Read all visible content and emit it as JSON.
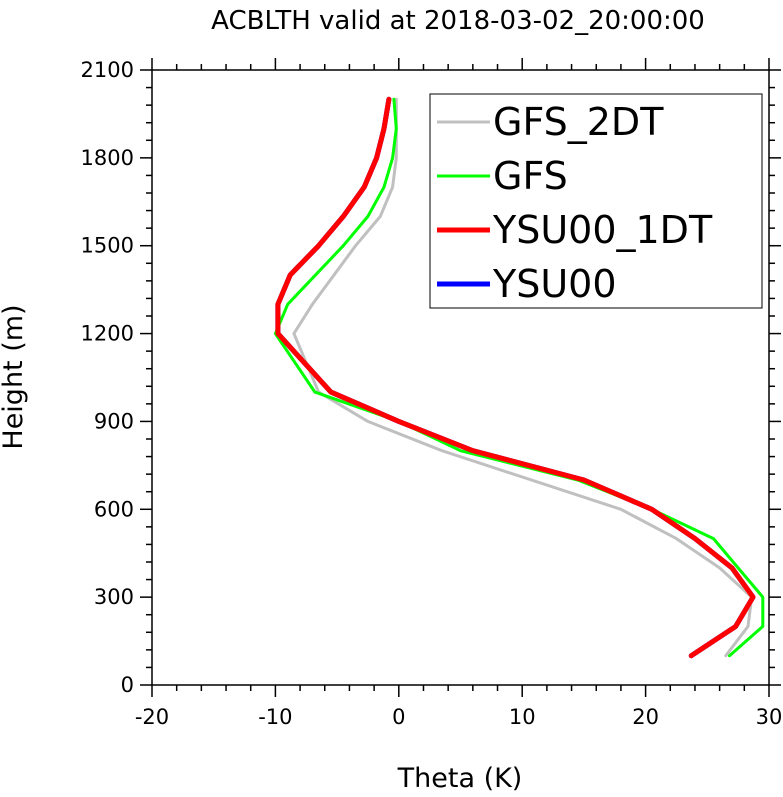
{
  "chart_data": {
    "type": "line",
    "title": "ACBLTH valid at 2018-03-02_20:00:00",
    "xlabel": "Theta (K)",
    "ylabel": "Height (m)",
    "xlim": [
      -20,
      30
    ],
    "ylim": [
      0,
      2100
    ],
    "xticks": [
      -20,
      -10,
      0,
      10,
      20,
      30
    ],
    "yticks": [
      0,
      300,
      600,
      900,
      1200,
      1500,
      1800,
      2100
    ],
    "grid": false,
    "legend_position": "top-right",
    "series": [
      {
        "name": "GFS_2DT",
        "color": "#c0c0c0",
        "width": 3,
        "points": [
          [
            26.5,
            100
          ],
          [
            28.3,
            200
          ],
          [
            28.6,
            300
          ],
          [
            26.0,
            400
          ],
          [
            22.5,
            500
          ],
          [
            18.0,
            600
          ],
          [
            3.5,
            800
          ],
          [
            -2.5,
            900
          ],
          [
            -6.5,
            1000
          ],
          [
            -8.5,
            1200
          ],
          [
            -7.0,
            1300
          ],
          [
            -3.5,
            1500
          ],
          [
            -1.5,
            1600
          ],
          [
            -0.5,
            1700
          ],
          [
            -0.2,
            1800
          ],
          [
            -0.2,
            1900
          ],
          [
            -0.2,
            2000
          ]
        ]
      },
      {
        "name": "GFS",
        "color": "#00ff00",
        "width": 3,
        "points": [
          [
            26.8,
            100
          ],
          [
            29.5,
            200
          ],
          [
            29.5,
            300
          ],
          [
            27.5,
            400
          ],
          [
            25.5,
            500
          ],
          [
            20.5,
            600
          ],
          [
            14.5,
            700
          ],
          [
            5.0,
            800
          ],
          [
            0.0,
            900
          ],
          [
            -6.8,
            1000
          ],
          [
            -10.0,
            1200
          ],
          [
            -9.0,
            1300
          ],
          [
            -4.5,
            1500
          ],
          [
            -2.5,
            1600
          ],
          [
            -1.2,
            1700
          ],
          [
            -0.5,
            1800
          ],
          [
            -0.2,
            1900
          ],
          [
            -0.4,
            2000
          ]
        ]
      },
      {
        "name": "YSU00_1DT",
        "color": "#ff0000",
        "width": 5,
        "points": [
          [
            23.7,
            100
          ],
          [
            27.3,
            200
          ],
          [
            28.7,
            300
          ],
          [
            27.0,
            400
          ],
          [
            24.0,
            500
          ],
          [
            20.5,
            600
          ],
          [
            15.0,
            700
          ],
          [
            6.0,
            800
          ],
          [
            0.0,
            900
          ],
          [
            -5.5,
            1000
          ],
          [
            -9.8,
            1200
          ],
          [
            -9.8,
            1300
          ],
          [
            -8.8,
            1400
          ],
          [
            -6.5,
            1500
          ],
          [
            -4.5,
            1600
          ],
          [
            -2.8,
            1700
          ],
          [
            -1.8,
            1800
          ],
          [
            -1.2,
            1900
          ],
          [
            -0.8,
            2000
          ]
        ]
      },
      {
        "name": "YSU00",
        "color": "#0000ff",
        "width": 5,
        "points": [
          [
            23.7,
            100
          ],
          [
            27.3,
            200
          ],
          [
            28.7,
            300
          ],
          [
            27.0,
            400
          ],
          [
            24.0,
            500
          ],
          [
            20.5,
            600
          ],
          [
            15.0,
            700
          ],
          [
            6.0,
            800
          ],
          [
            0.0,
            900
          ],
          [
            -5.5,
            1000
          ],
          [
            -9.8,
            1200
          ],
          [
            -9.8,
            1300
          ],
          [
            -8.8,
            1400
          ],
          [
            -6.5,
            1500
          ],
          [
            -4.5,
            1600
          ],
          [
            -2.8,
            1700
          ],
          [
            -1.8,
            1800
          ],
          [
            -1.2,
            1900
          ],
          [
            -0.8,
            2000
          ]
        ]
      }
    ],
    "draw_order": [
      3,
      0,
      1,
      2
    ]
  }
}
